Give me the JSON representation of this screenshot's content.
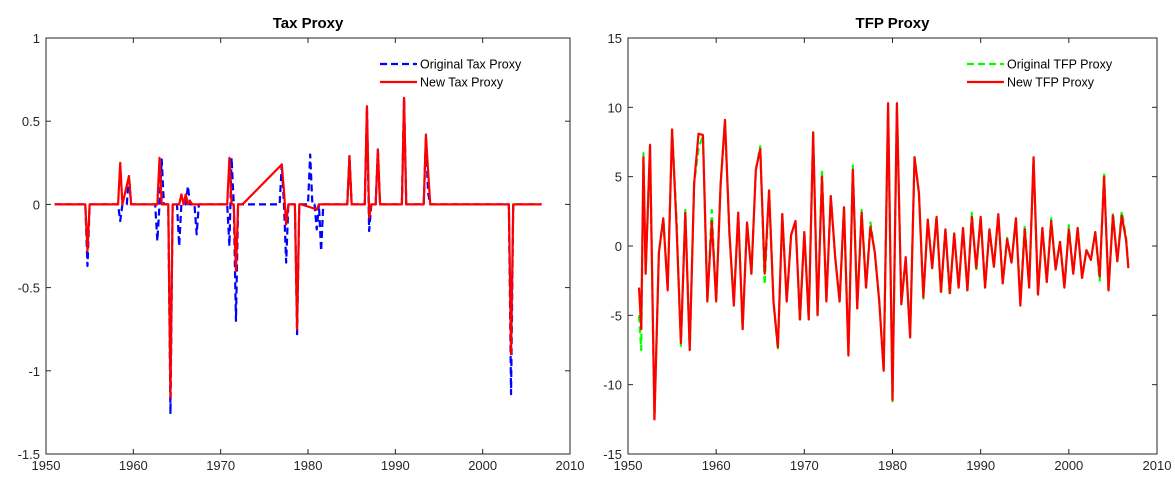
{
  "chart_data": [
    {
      "type": "line",
      "title": "Tax Proxy",
      "xlabel": "",
      "ylabel": "",
      "xlim": [
        1950,
        2010
      ],
      "ylim": [
        -1.5,
        1
      ],
      "xticks": [
        1950,
        1960,
        1970,
        1980,
        1990,
        2000,
        2010
      ],
      "yticks": [
        -1.5,
        -1,
        -0.5,
        0,
        0.5,
        1
      ],
      "xtick_labels": [
        "1950",
        "1960",
        "1970",
        "1980",
        "1990",
        "2000",
        "2010"
      ],
      "ytick_labels": [
        "-1.5",
        "-1",
        "-0.5",
        "0",
        "0.5",
        "1"
      ],
      "grid": false,
      "legend_position": "top-right",
      "series": [
        {
          "name": "Original Tax Proxy",
          "color": "#0000ff",
          "dash": "dashed",
          "x": [
            1951.0,
            1954.5,
            1954.75,
            1955.0,
            1958.25,
            1958.5,
            1958.75,
            1959.25,
            1959.5,
            1959.75,
            1962.5,
            1962.75,
            1963.0,
            1963.25,
            1963.5,
            1964.0,
            1964.25,
            1964.5,
            1965.0,
            1965.25,
            1965.5,
            1966.0,
            1966.25,
            1966.5,
            1967.0,
            1967.25,
            1967.5,
            1967.75,
            1970.75,
            1971.0,
            1971.25,
            1971.5,
            1971.75,
            1972.0,
            1972.25,
            1972.5,
            1976.75,
            1977.0,
            1977.25,
            1977.5,
            1977.75,
            1978.5,
            1978.75,
            1979.0,
            1979.25,
            1980.0,
            1980.25,
            1980.5,
            1980.75,
            1981.0,
            1981.25,
            1981.5,
            1981.75,
            1982.0,
            1984.5,
            1984.75,
            1985.0,
            1986.5,
            1986.75,
            1987.0,
            1987.25,
            1987.75,
            1988.0,
            1988.25,
            1990.75,
            1991.0,
            1991.25,
            1993.25,
            1993.5,
            1993.75,
            1994.0,
            2003.0,
            2003.25,
            2003.5,
            2006.75
          ],
          "y": [
            0,
            0,
            -0.37,
            0,
            0,
            -0.1,
            0,
            0,
            0.17,
            0,
            0,
            -0.22,
            0,
            0.27,
            0,
            0,
            -1.26,
            0,
            0,
            -0.25,
            0,
            0,
            0.11,
            0,
            0,
            -0.18,
            0,
            0,
            0,
            -0.25,
            0.28,
            0,
            -0.7,
            0,
            0,
            0,
            0,
            0.24,
            0,
            -0.35,
            0,
            0,
            -0.78,
            0,
            0,
            0,
            0.3,
            0,
            0,
            -0.15,
            0,
            -0.28,
            0,
            0,
            0,
            0.29,
            0,
            0,
            0.58,
            -0.16,
            0,
            0,
            0.33,
            0,
            0,
            0.64,
            0,
            0,
            0.4,
            0.07,
            0,
            0,
            -1.14,
            0,
            0
          ]
        },
        {
          "name": "New Tax Proxy",
          "color": "#ff0000",
          "dash": "solid",
          "x": [
            1951.0,
            1954.5,
            1954.75,
            1955.0,
            1958.25,
            1958.5,
            1958.75,
            1959.5,
            1959.75,
            1960.0,
            1962.75,
            1963.0,
            1963.25,
            1963.5,
            1964.0,
            1964.25,
            1964.5,
            1965.25,
            1965.5,
            1965.75,
            1966.0,
            1966.25,
            1966.5,
            1966.75,
            1967.0,
            1970.75,
            1971.0,
            1971.25,
            1971.5,
            1971.75,
            1972.0,
            1972.25,
            1972.5,
            1977.0,
            1977.25,
            1977.5,
            1977.75,
            1978.0,
            1978.5,
            1978.75,
            1979.0,
            1979.25,
            1981.0,
            1981.25,
            1981.5,
            1984.5,
            1984.75,
            1985.0,
            1986.5,
            1986.75,
            1987.0,
            1987.25,
            1987.75,
            1988.0,
            1988.25,
            1990.75,
            1991.0,
            1991.25,
            1993.25,
            1993.5,
            1993.75,
            1994.0,
            2003.0,
            2003.25,
            2003.5,
            2006.75
          ],
          "y": [
            0,
            0,
            -0.28,
            0,
            0,
            0.25,
            0,
            0.17,
            0,
            0,
            0,
            0.28,
            0,
            0,
            0,
            -1.16,
            0,
            0,
            0.06,
            0,
            0.06,
            0,
            0.02,
            0,
            0,
            0,
            0.28,
            0,
            0,
            -0.4,
            0,
            0,
            0,
            0.24,
            0.08,
            -0.12,
            0,
            0,
            0,
            -0.75,
            0,
            0,
            -0.03,
            0,
            0,
            0,
            0.29,
            0,
            0,
            0.59,
            -0.08,
            0,
            0,
            0.33,
            0,
            0,
            0.64,
            0,
            0,
            0.42,
            0.2,
            0,
            0,
            -0.9,
            0,
            0
          ]
        }
      ]
    },
    {
      "type": "line",
      "title": "TFP Proxy",
      "xlabel": "",
      "ylabel": "",
      "xlim": [
        1950,
        2010
      ],
      "ylim": [
        -15,
        15
      ],
      "xticks": [
        1950,
        1960,
        1970,
        1980,
        1990,
        2000,
        2010
      ],
      "yticks": [
        -15,
        -10,
        -5,
        0,
        5,
        10,
        15
      ],
      "xtick_labels": [
        "1950",
        "1960",
        "1970",
        "1980",
        "1990",
        "2000",
        "2010"
      ],
      "ytick_labels": [
        "-15",
        "-10",
        "-5",
        "0",
        "5",
        "10",
        "15"
      ],
      "grid": false,
      "legend_position": "top-right",
      "series": [
        {
          "name": "Original TFP Proxy",
          "color": "#00ff00",
          "dash": "dashed",
          "x": [
            1951.25,
            1951.5,
            1951.75,
            1952.0,
            1952.5,
            1953.0,
            1953.5,
            1954.0,
            1954.5,
            1955.0,
            1955.5,
            1956.0,
            1956.5,
            1957.0,
            1957.5,
            1958.0,
            1958.5,
            1959.0,
            1959.5,
            1960.0,
            1960.5,
            1961.0,
            1961.5,
            1962.0,
            1962.5,
            1963.0,
            1963.5,
            1964.0,
            1964.5,
            1965.0,
            1965.5,
            1966.0,
            1966.5,
            1967.0,
            1967.5,
            1968.0,
            1968.5,
            1969.0,
            1969.5,
            1970.0,
            1970.5,
            1971.0,
            1971.5,
            1972.0,
            1972.5,
            1973.0,
            1973.5,
            1974.0,
            1974.5,
            1975.0,
            1975.5,
            1976.0,
            1976.5,
            1977.0,
            1977.5,
            1978.0,
            1978.5,
            1979.0,
            1979.5,
            1980.0,
            1980.5,
            1981.0,
            1981.5,
            1982.0,
            1982.5,
            1983.0,
            1983.5,
            1984.0,
            1984.5,
            1985.0,
            1985.5,
            1986.0,
            1986.5,
            1987.0,
            1987.5,
            1988.0,
            1988.5,
            1989.0,
            1989.5,
            1990.0,
            1990.5,
            1991.0,
            1991.5,
            1992.0,
            1992.5,
            1993.0,
            1993.5,
            1994.0,
            1994.5,
            1995.0,
            1995.5,
            1996.0,
            1996.5,
            1997.0,
            1997.5,
            1998.0,
            1998.5,
            1999.0,
            1999.5,
            2000.0,
            2000.5,
            2001.0,
            2001.5,
            2002.0,
            2002.5,
            2003.0,
            2003.5,
            2004.0,
            2004.5,
            2005.0,
            2005.5,
            2006.0,
            2006.5,
            2006.75
          ],
          "y": [
            -5.0,
            -7.5,
            6.7,
            -2.0,
            7.2,
            -12.5,
            -0.5,
            2.0,
            -3.0,
            8.4,
            2.1,
            -7.2,
            2.6,
            -7.5,
            4.5,
            7.0,
            8.0,
            -4.0,
            2.6,
            -4.0,
            4.4,
            9.0,
            0.8,
            -4.0,
            2.4,
            -6.0,
            1.7,
            -2.0,
            5.5,
            7.2,
            -2.8,
            4.0,
            -4.0,
            -7.5,
            2.3,
            -4.0,
            0.8,
            1.8,
            -5.5,
            1.0,
            -5.3,
            8.2,
            -5.0,
            5.5,
            -4.0,
            3.6,
            -0.8,
            -4.0,
            2.8,
            -7.8,
            5.8,
            -4.5,
            2.6,
            -3.0,
            1.7,
            -0.5,
            -4.0,
            -9.0,
            9.9,
            -11.2,
            10.2,
            -4.2,
            -1.0,
            -6.5,
            6.4,
            3.8,
            -3.8,
            1.9,
            -1.6,
            2.1,
            -3.5,
            1.2,
            -3.6,
            0.9,
            -3.0,
            1.3,
            -3.2,
            2.4,
            -1.8,
            2.1,
            -3.0,
            1.2,
            -1.5,
            2.3,
            -2.7,
            0.6,
            -1.2,
            2.0,
            -3.8,
            1.5,
            -3.0,
            6.3,
            -3.5,
            1.3,
            -2.6,
            2.0,
            -1.7,
            0.3,
            -3.0,
            1.5,
            -2.0,
            1.3,
            -2.3,
            -0.3,
            -1.0,
            1.0,
            -2.5,
            5.3,
            -3.2,
            2.4,
            -1.1,
            2.5,
            0.6,
            -1.5
          ]
        },
        {
          "name": "New TFP Proxy",
          "color": "#ff0000",
          "dash": "solid",
          "x": [
            1951.25,
            1951.5,
            1951.75,
            1952.0,
            1952.5,
            1953.0,
            1953.5,
            1954.0,
            1954.5,
            1955.0,
            1955.5,
            1956.0,
            1956.5,
            1957.0,
            1957.5,
            1958.0,
            1958.5,
            1959.0,
            1959.5,
            1960.0,
            1960.5,
            1961.0,
            1961.5,
            1962.0,
            1962.5,
            1963.0,
            1963.5,
            1964.0,
            1964.5,
            1965.0,
            1965.5,
            1966.0,
            1966.5,
            1967.0,
            1967.5,
            1968.0,
            1968.5,
            1969.0,
            1969.5,
            1970.0,
            1970.5,
            1971.0,
            1971.5,
            1972.0,
            1972.5,
            1973.0,
            1973.5,
            1974.0,
            1974.5,
            1975.0,
            1975.5,
            1976.0,
            1976.5,
            1977.0,
            1977.5,
            1978.0,
            1978.5,
            1979.0,
            1979.5,
            1980.0,
            1980.5,
            1981.0,
            1981.5,
            1982.0,
            1982.5,
            1983.0,
            1983.5,
            1984.0,
            1984.5,
            1985.0,
            1985.5,
            1986.0,
            1986.5,
            1987.0,
            1987.5,
            1988.0,
            1988.5,
            1989.0,
            1989.5,
            1990.0,
            1990.5,
            1991.0,
            1991.5,
            1992.0,
            1992.5,
            1993.0,
            1993.5,
            1994.0,
            1994.5,
            1995.0,
            1995.5,
            1996.0,
            1996.5,
            1997.0,
            1997.5,
            1998.0,
            1998.5,
            1999.0,
            1999.5,
            2000.0,
            2000.5,
            2001.0,
            2001.5,
            2002.0,
            2002.5,
            2003.0,
            2003.5,
            2004.0,
            2004.5,
            2005.0,
            2005.5,
            2006.0,
            2006.5,
            2006.75
          ],
          "y": [
            -3.0,
            -6.0,
            6.4,
            -2.0,
            7.3,
            -12.5,
            -0.5,
            2.0,
            -3.2,
            8.4,
            1.5,
            -7.0,
            2.4,
            -7.5,
            4.5,
            8.1,
            8.0,
            -4.0,
            1.8,
            -4.0,
            4.4,
            9.1,
            1.0,
            -4.3,
            2.4,
            -6.0,
            1.7,
            -2.0,
            5.5,
            7.0,
            -2.0,
            4.0,
            -4.0,
            -7.3,
            2.3,
            -4.0,
            0.8,
            1.8,
            -5.3,
            1.0,
            -5.3,
            8.2,
            -5.0,
            5.0,
            -4.0,
            3.6,
            -0.8,
            -4.0,
            2.8,
            -7.9,
            5.5,
            -4.5,
            2.4,
            -3.0,
            1.4,
            -0.5,
            -4.0,
            -9.0,
            10.3,
            -11.1,
            10.3,
            -4.2,
            -0.8,
            -6.6,
            6.4,
            3.8,
            -3.7,
            1.9,
            -1.6,
            2.1,
            -3.3,
            1.2,
            -3.4,
            0.9,
            -3.0,
            1.3,
            -3.2,
            2.1,
            -1.6,
            2.1,
            -3.0,
            1.2,
            -1.5,
            2.3,
            -2.7,
            0.5,
            -1.2,
            2.0,
            -4.3,
            1.2,
            -3.0,
            6.4,
            -3.5,
            1.3,
            -2.6,
            1.8,
            -1.7,
            0.3,
            -3.0,
            1.2,
            -2.0,
            1.3,
            -2.3,
            -0.3,
            -1.0,
            1.0,
            -2.2,
            5.0,
            -3.2,
            2.2,
            -1.1,
            2.2,
            0.4,
            -1.6
          ]
        }
      ]
    }
  ]
}
